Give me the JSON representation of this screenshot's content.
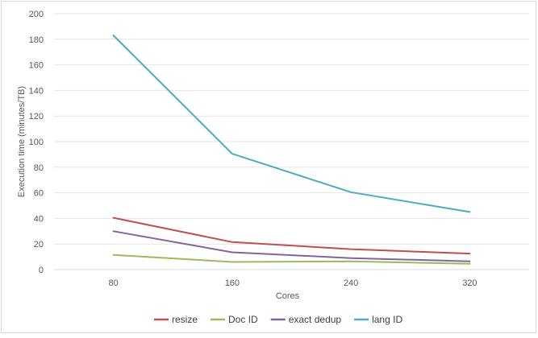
{
  "chart_data": {
    "type": "line",
    "title": "",
    "xlabel": "Cores",
    "ylabel": "Execution time (minutes/TB)",
    "categories": [
      "80",
      "160",
      "240",
      "320"
    ],
    "ylim": [
      0,
      200
    ],
    "yticks": [
      0,
      20,
      40,
      60,
      80,
      100,
      120,
      140,
      160,
      180,
      200
    ],
    "grid": true,
    "legend_position": "bottom",
    "series": [
      {
        "name": "resize",
        "color": "#c0504d",
        "values": [
          40.5,
          21.5,
          16,
          12.5
        ]
      },
      {
        "name": "Doc ID",
        "color": "#9bbb59",
        "values": [
          11.5,
          6,
          6.5,
          4.5
        ]
      },
      {
        "name": "exact dedup",
        "color": "#8064a2",
        "values": [
          30,
          13.5,
          9,
          6.5
        ]
      },
      {
        "name": "lang ID",
        "color": "#4bacc6",
        "values": [
          183,
          90.5,
          60.5,
          45
        ]
      }
    ]
  }
}
